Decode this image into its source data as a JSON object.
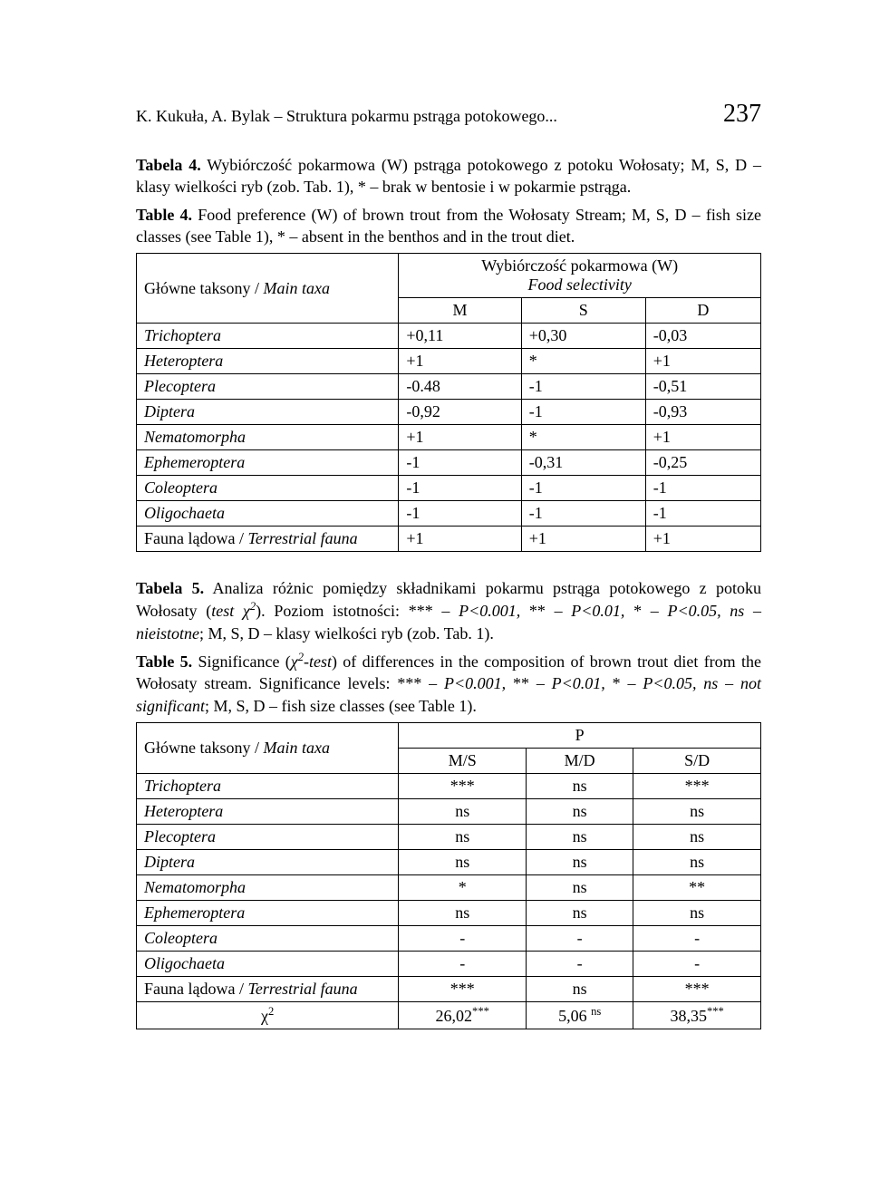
{
  "header": {
    "running": "K. Kukuła, A. Bylak – Struktura pokarmu pstrąga potokowego...",
    "page_number": "237"
  },
  "table4": {
    "caption_pl_bold": "Tabela 4.",
    "caption_pl_text": " Wybiórczość pokarmowa (W) pstrąga potokowego z potoku Wołosaty; M, S, D – klasy wielkości ryb (zob. Tab. 1), * – brak w bentosie i w pokarmie pstrąga.",
    "caption_en_bold": "Table 4.",
    "caption_en_text": " Food preference (W) of brown trout from the Wołosaty Stream; M, S, D – fish size classes (see Table 1), * – absent in the benthos and in the trout diet.",
    "rowhead_pl": "Główne taksony / ",
    "rowhead_it": "Main taxa",
    "colgroup_pl": "Wybiórczość pokarmowa (W)",
    "colgroup_it": "Food selectivity",
    "cols": [
      "M",
      "S",
      "D"
    ],
    "rows": [
      {
        "taxon": "Trichoptera",
        "italic": true,
        "vals": [
          "+0,11",
          "+0,30",
          "-0,03"
        ]
      },
      {
        "taxon": "Heteroptera",
        "italic": true,
        "vals": [
          "+1",
          "*",
          "+1"
        ]
      },
      {
        "taxon": "Plecoptera",
        "italic": true,
        "vals": [
          "-0.48",
          "-1",
          "-0,51"
        ]
      },
      {
        "taxon": "Diptera",
        "italic": true,
        "vals": [
          "-0,92",
          "-1",
          "-0,93"
        ]
      },
      {
        "taxon": "Nematomorpha",
        "italic": true,
        "vals": [
          "+1",
          "*",
          "+1"
        ]
      },
      {
        "taxon": "Ephemeroptera",
        "italic": true,
        "vals": [
          "-1",
          "-0,31",
          "-0,25"
        ]
      },
      {
        "taxon": "Coleoptera",
        "italic": true,
        "vals": [
          "-1",
          "-1",
          "-1"
        ]
      },
      {
        "taxon": "Oligochaeta",
        "italic": true,
        "vals": [
          "-1",
          "-1",
          "-1"
        ]
      },
      {
        "taxon_plain": "Fauna lądowa / ",
        "taxon_it": "Terrestrial fauna",
        "vals": [
          "+1",
          "+1",
          "+1"
        ]
      }
    ]
  },
  "table5": {
    "caption_pl_bold": "Tabela 5.",
    "caption_pl_text_a": " Analiza różnic pomiędzy składnikami pokarmu pstrąga potokowego z potoku Wołosaty (",
    "caption_pl_test_it": "test χ",
    "caption_pl_sup": "2",
    "caption_pl_text_b": "). Poziom istotności: ",
    "sig_xxx": "***",
    "p001": " – P<0.001, ",
    "sig_xx": "**",
    "p01": " – P<0.01, ",
    "sig_x": "*",
    "p05": " – P<0.05, ns – nieistotne",
    "caption_pl_text_c": "; M, S, D – klasy wielkości ryb (zob. Tab. 1).",
    "caption_en_bold": "Table 5.",
    "caption_en_text_a": " Significance (",
    "caption_en_chi_it": "χ",
    "caption_en_chi_sup": "2",
    "caption_en_test_it": "-test",
    "caption_en_text_b": ") of differences in the composition of brown trout diet from the Wołosaty stream. Significance levels: ",
    "en_p001": " – P<0.001, ",
    "en_p01": " – P<0.01, ",
    "en_p05": " – P<0.05, ns – not significant",
    "caption_en_text_c": "; M, S, D – fish size classes (see Table 1).",
    "rowhead_pl": "Główne taksony / ",
    "rowhead_it": "Main taxa",
    "p_label": "P",
    "cols": [
      "M/S",
      "M/D",
      "S/D"
    ],
    "rows": [
      {
        "taxon": "Trichoptera",
        "italic": true,
        "vals": [
          "***",
          "ns",
          "***"
        ]
      },
      {
        "taxon": "Heteroptera",
        "italic": true,
        "vals": [
          "ns",
          "ns",
          "ns"
        ]
      },
      {
        "taxon": "Plecoptera",
        "italic": true,
        "vals": [
          "ns",
          "ns",
          "ns"
        ]
      },
      {
        "taxon": "Diptera",
        "italic": true,
        "vals": [
          "ns",
          "ns",
          "ns"
        ]
      },
      {
        "taxon": "Nematomorpha",
        "italic": true,
        "vals": [
          "*",
          "ns",
          "**"
        ]
      },
      {
        "taxon": "Ephemeroptera",
        "italic": true,
        "vals": [
          "ns",
          "ns",
          "ns"
        ]
      },
      {
        "taxon": "Coleoptera",
        "italic": true,
        "vals": [
          "-",
          "-",
          "-"
        ]
      },
      {
        "taxon": "Oligochaeta",
        "italic": true,
        "vals": [
          "-",
          "-",
          "-"
        ]
      },
      {
        "taxon_plain": "Fauna lądowa / ",
        "taxon_it": "Terrestrial fauna",
        "vals": [
          "***",
          "ns",
          "***"
        ]
      }
    ],
    "chi_label": "χ",
    "chi_sup": "2",
    "chi_vals": [
      {
        "v": "26,02",
        "s": "***"
      },
      {
        "v": "5,06 ",
        "s": "ns"
      },
      {
        "v": "38,35",
        "s": "***"
      }
    ]
  }
}
